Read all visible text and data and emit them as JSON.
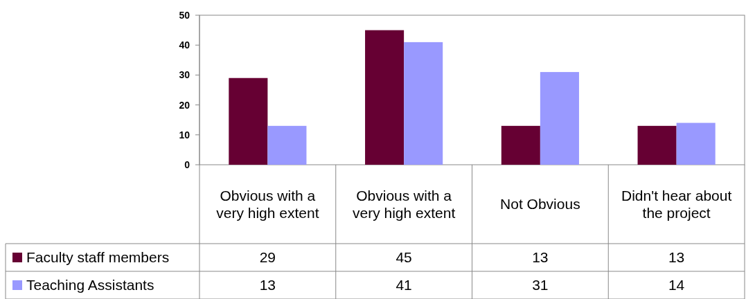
{
  "chart_data": {
    "type": "bar",
    "categories": [
      "Obvious with a very high extent",
      "Obvious with a very high extent",
      "Not Obvious",
      "Didn't hear about the project"
    ],
    "series": [
      {
        "name": "Faculty staff members",
        "color": "#660033",
        "values": [
          29,
          45,
          13,
          13
        ]
      },
      {
        "name": "Teaching Assistants",
        "color": "#9999ff",
        "values": [
          13,
          41,
          31,
          14
        ]
      }
    ],
    "ylim": [
      0,
      50
    ],
    "yticks": [
      0,
      10,
      20,
      30,
      40,
      50
    ],
    "grid": false,
    "legend": "bottom left",
    "data_labels": true
  }
}
